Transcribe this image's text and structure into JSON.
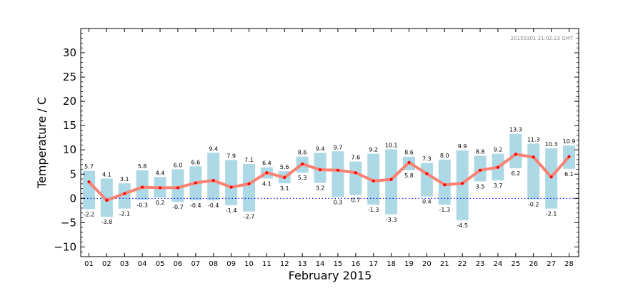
{
  "chart_data": {
    "type": "bar",
    "xlabel": "February 2015",
    "ylabel": "Temperature / C",
    "timestamp": "20150301 21:02:23 GMT",
    "ylim": [
      -12,
      35
    ],
    "yticks": [
      -10,
      -5,
      0,
      5,
      10,
      15,
      20,
      25,
      30
    ],
    "ytick_labels": [
      "−10",
      "−5",
      "0",
      "5",
      "10",
      "15",
      "20",
      "25",
      "30"
    ],
    "grid": false,
    "zero_line": {
      "value": 0,
      "style": "dotted",
      "color": "#0000ff"
    },
    "colors": {
      "range_bar": "#add8e6",
      "mean_line": "#fa8072",
      "mean_point": "#ff0000"
    },
    "categories": [
      "01",
      "02",
      "03",
      "04",
      "05",
      "06",
      "07",
      "08",
      "09",
      "10",
      "11",
      "12",
      "13",
      "14",
      "15",
      "16",
      "17",
      "18",
      "19",
      "20",
      "21",
      "22",
      "23",
      "24",
      "25",
      "26",
      "27",
      "28"
    ],
    "series": [
      {
        "role": "max",
        "values": [
          5.7,
          4.1,
          3.1,
          5.8,
          4.4,
          6.0,
          6.6,
          9.4,
          7.9,
          7.1,
          6.4,
          5.6,
          8.6,
          9.4,
          9.7,
          7.6,
          9.2,
          10.1,
          8.6,
          7.3,
          8.0,
          9.9,
          8.8,
          9.2,
          13.3,
          11.3,
          10.3,
          10.9
        ]
      },
      {
        "role": "min",
        "values": [
          -2.2,
          -3.8,
          -2.1,
          -0.3,
          0.2,
          -0.7,
          -0.4,
          -0.4,
          -1.4,
          -2.7,
          4.1,
          3.1,
          5.3,
          3.2,
          0.3,
          0.7,
          -1.3,
          -3.3,
          5.8,
          0.4,
          -1.3,
          -4.5,
          3.5,
          3.7,
          6.2,
          -0.2,
          -2.1,
          6.1
        ]
      },
      {
        "role": "mean",
        "values": [
          3.4,
          -0.4,
          1.0,
          2.3,
          2.2,
          2.2,
          3.2,
          3.7,
          2.3,
          3.0,
          5.3,
          4.3,
          7.1,
          5.9,
          5.8,
          5.3,
          3.6,
          3.9,
          7.4,
          5.1,
          2.8,
          3.1,
          5.8,
          6.4,
          9.1,
          8.5,
          4.4,
          8.6
        ]
      }
    ],
    "min_labels": [
      "-2.2",
      "-3.8",
      "-2.1",
      "-0.3",
      "0.2",
      "-0.7",
      "-0.4",
      "-0.4",
      "-1.4",
      "-2.7",
      "4.1",
      "3.1",
      "5.3",
      "3.2",
      "0.3",
      "0.7",
      "-1.3",
      "-3.3",
      "5.8",
      "0.4",
      "-1.3",
      "-4.5",
      "3.5",
      "3.7",
      "6.2",
      "-0.2",
      "-2.1",
      "6.1"
    ],
    "max_labels": [
      "5.7",
      "4.1",
      "3.1",
      "5.8",
      "4.4",
      "6.0",
      "6.6",
      "9.4",
      "7.9",
      "7.1",
      "6.4",
      "5.6",
      "8.6",
      "9.4",
      "9.7",
      "7.6",
      "9.2",
      "10.1",
      "8.6",
      "7.3",
      "8.0",
      "9.9",
      "8.8",
      "9.2",
      "13.3",
      "11.3",
      "10.3",
      "10.9"
    ]
  }
}
